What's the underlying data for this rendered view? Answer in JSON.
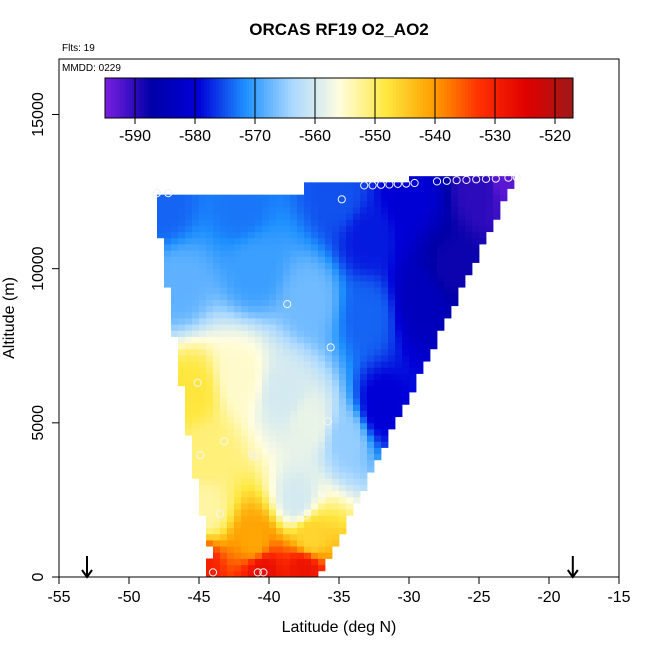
{
  "chart_data": {
    "type": "heatmap",
    "title": "ORCAS RF19 O2_AO2",
    "annotations": {
      "flights": "Flts: 19",
      "date": "MMDD: 0229"
    },
    "xlabel": "Latitude (deg N)",
    "ylabel": "Altitude (m)",
    "xlim": [
      -55,
      -15
    ],
    "ylim": [
      0,
      16800
    ],
    "x_ticks": [
      "-55",
      "-50",
      "-45",
      "-40",
      "-35",
      "-30",
      "-25",
      "-20",
      "-15"
    ],
    "y_ticks": [
      "0",
      "5000",
      "10000",
      "15000"
    ],
    "colorbar": {
      "min": -595,
      "max": -517,
      "ticks": [
        "-590",
        "-580",
        "-570",
        "-560",
        "-550",
        "-540",
        "-530",
        "-520"
      ],
      "colors": [
        "#7a1fe0",
        "#0000a8",
        "#0000d8",
        "#1e90ff",
        "#aad8ff",
        "#fffde0",
        "#ffe840",
        "#ffa000",
        "#ff3000",
        "#e00000",
        "#a01818"
      ]
    },
    "domain_outline": [
      {
        "lat": -48.2,
        "alt": 12500
      },
      {
        "lat": -37.5,
        "alt": 12500
      },
      {
        "lat": -37.5,
        "alt": 12800
      },
      {
        "lat": -22.3,
        "alt": 13000
      },
      {
        "lat": -36.0,
        "alt": 300
      },
      {
        "lat": -37.0,
        "alt": 0
      },
      {
        "lat": -44.3,
        "alt": 0
      },
      {
        "lat": -44.2,
        "alt": 1000
      },
      {
        "lat": -45.2,
        "alt": 3000
      },
      {
        "lat": -46.5,
        "alt": 7000
      }
    ],
    "field_samples": [
      {
        "lat": -45.0,
        "alt": 300,
        "value": -530
      },
      {
        "lat": -40.5,
        "alt": 200,
        "value": -527
      },
      {
        "lat": -37.5,
        "alt": 200,
        "value": -528
      },
      {
        "lat": -41.0,
        "alt": 1100,
        "value": -541
      },
      {
        "lat": -37.0,
        "alt": 1300,
        "value": -546
      },
      {
        "lat": -44.5,
        "alt": 2200,
        "value": -553
      },
      {
        "lat": -38.0,
        "alt": 2500,
        "value": -560
      },
      {
        "lat": -45.5,
        "alt": 6000,
        "value": -548
      },
      {
        "lat": -44.5,
        "alt": 4000,
        "value": -551
      },
      {
        "lat": -42.0,
        "alt": 6500,
        "value": -555
      },
      {
        "lat": -39.0,
        "alt": 6000,
        "value": -560
      },
      {
        "lat": -37.0,
        "alt": 5000,
        "value": -558
      },
      {
        "lat": -34.5,
        "alt": 4500,
        "value": -565
      },
      {
        "lat": -32.0,
        "alt": 5500,
        "value": -580
      },
      {
        "lat": -46.5,
        "alt": 9500,
        "value": -568
      },
      {
        "lat": -41.0,
        "alt": 10000,
        "value": -570
      },
      {
        "lat": -37.0,
        "alt": 9000,
        "value": -567
      },
      {
        "lat": -33.0,
        "alt": 8500,
        "value": -574
      },
      {
        "lat": -29.0,
        "alt": 9000,
        "value": -584
      },
      {
        "lat": -27.0,
        "alt": 10000,
        "value": -588
      },
      {
        "lat": -47.5,
        "alt": 12000,
        "value": -574
      },
      {
        "lat": -42.0,
        "alt": 12000,
        "value": -573
      },
      {
        "lat": -35.0,
        "alt": 12300,
        "value": -575
      },
      {
        "lat": -30.0,
        "alt": 12500,
        "value": -580
      },
      {
        "lat": -25.0,
        "alt": 12600,
        "value": -590
      },
      {
        "lat": -23.0,
        "alt": 12950,
        "value": -593
      },
      {
        "lat": -33.0,
        "alt": 11000,
        "value": -578
      }
    ],
    "observations": [
      {
        "lat": -48.0,
        "alt": 12450
      },
      {
        "lat": -47.2,
        "alt": 12450
      },
      {
        "lat": -34.8,
        "alt": 12250
      },
      {
        "lat": -33.2,
        "alt": 12700
      },
      {
        "lat": -32.6,
        "alt": 12700
      },
      {
        "lat": -32.0,
        "alt": 12720
      },
      {
        "lat": -31.4,
        "alt": 12730
      },
      {
        "lat": -30.8,
        "alt": 12750
      },
      {
        "lat": -30.2,
        "alt": 12760
      },
      {
        "lat": -29.6,
        "alt": 12780
      },
      {
        "lat": -28.0,
        "alt": 12830
      },
      {
        "lat": -27.3,
        "alt": 12850
      },
      {
        "lat": -26.6,
        "alt": 12870
      },
      {
        "lat": -25.9,
        "alt": 12880
      },
      {
        "lat": -25.2,
        "alt": 12900
      },
      {
        "lat": -24.5,
        "alt": 12910
      },
      {
        "lat": -23.8,
        "alt": 12920
      },
      {
        "lat": -22.9,
        "alt": 12950
      },
      {
        "lat": -22.3,
        "alt": 12960
      },
      {
        "lat": -38.7,
        "alt": 8850
      },
      {
        "lat": -35.6,
        "alt": 7450
      },
      {
        "lat": -45.1,
        "alt": 6300
      },
      {
        "lat": -35.8,
        "alt": 5050
      },
      {
        "lat": -43.2,
        "alt": 4400
      },
      {
        "lat": -39.9,
        "alt": 4150
      },
      {
        "lat": -41.2,
        "alt": 4000
      },
      {
        "lat": -41.0,
        "alt": 3900
      },
      {
        "lat": -44.9,
        "alt": 3950
      },
      {
        "lat": -36.1,
        "alt": 2650
      },
      {
        "lat": -37.4,
        "alt": 2000
      },
      {
        "lat": -43.5,
        "alt": 2050
      },
      {
        "lat": -44.0,
        "alt": 150
      },
      {
        "lat": -40.8,
        "alt": 150
      },
      {
        "lat": -40.4,
        "alt": 150
      }
    ],
    "arrows": [
      {
        "lat": -53.0
      },
      {
        "lat": -18.3
      }
    ],
    "grid": false,
    "legend": "top colorbar"
  }
}
